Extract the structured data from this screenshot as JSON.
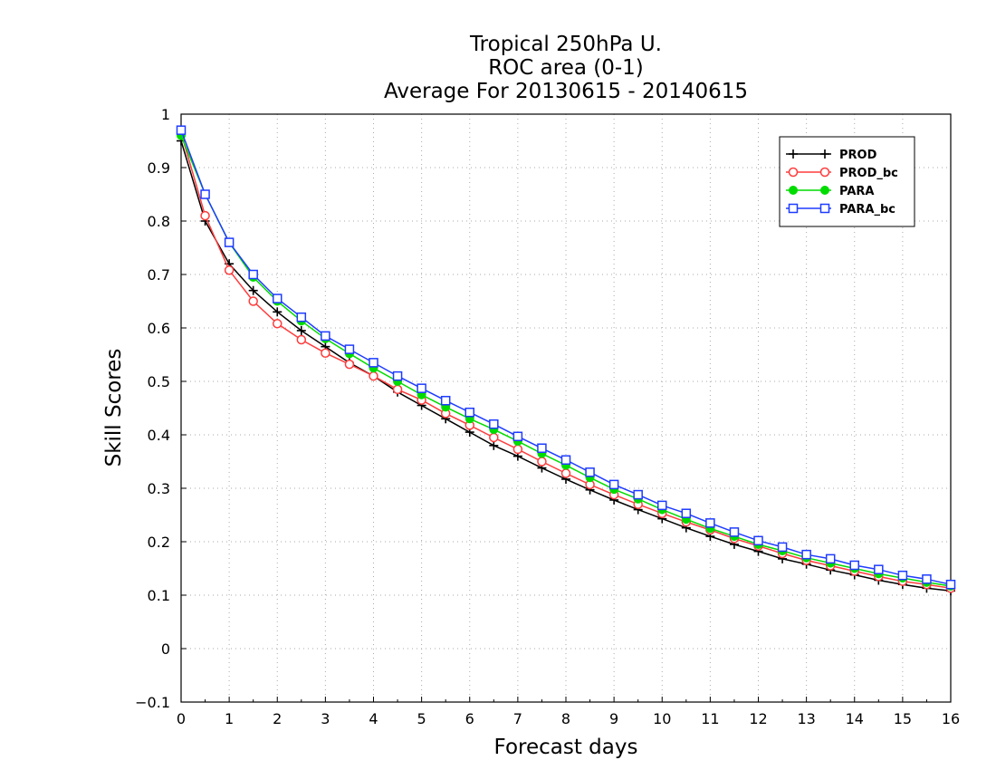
{
  "chart_data": {
    "type": "line",
    "title": [
      "Tropical 250hPa U.",
      "ROC area (0-1)",
      "Average For 20130615 - 20140615"
    ],
    "xlabel": "Forecast days",
    "ylabel": "Skill Scores",
    "xlim": [
      0,
      16
    ],
    "ylim": [
      -0.1,
      1
    ],
    "xticks": [
      "0",
      "1",
      "2",
      "3",
      "4",
      "5",
      "6",
      "7",
      "8",
      "9",
      "10",
      "11",
      "12",
      "13",
      "14",
      "15",
      "16"
    ],
    "yticks": [
      "−0.1",
      "0",
      "0.1",
      "0.2",
      "0.3",
      "0.4",
      "0.5",
      "0.6",
      "0.7",
      "0.8",
      "0.9",
      "1"
    ],
    "grid": true,
    "legend_position": "top-right",
    "x": [
      0,
      0.5,
      1,
      1.5,
      2,
      2.5,
      3,
      3.5,
      4,
      4.5,
      5,
      5.5,
      6,
      6.5,
      7,
      7.5,
      8,
      8.5,
      9,
      9.5,
      10,
      10.5,
      11,
      11.5,
      12,
      12.5,
      13,
      13.5,
      14,
      14.5,
      15,
      15.5,
      16
    ],
    "series": [
      {
        "name": "PROD",
        "color": "#000000",
        "marker": "plus",
        "values": [
          0.95,
          0.8,
          0.72,
          0.67,
          0.63,
          0.595,
          0.565,
          0.535,
          0.51,
          0.48,
          0.455,
          0.43,
          0.405,
          0.38,
          0.36,
          0.338,
          0.317,
          0.297,
          0.278,
          0.26,
          0.243,
          0.226,
          0.21,
          0.195,
          0.182,
          0.168,
          0.158,
          0.147,
          0.138,
          0.128,
          0.12,
          0.113,
          0.108
        ]
      },
      {
        "name": "PROD_bc",
        "color": "#ff3c3c",
        "marker": "circle",
        "values": [
          0.965,
          0.81,
          0.708,
          0.65,
          0.608,
          0.578,
          0.553,
          0.532,
          0.51,
          0.485,
          0.465,
          0.44,
          0.418,
          0.395,
          0.373,
          0.35,
          0.328,
          0.307,
          0.288,
          0.27,
          0.253,
          0.237,
          0.222,
          0.206,
          0.192,
          0.178,
          0.165,
          0.155,
          0.145,
          0.135,
          0.126,
          0.12,
          0.113
        ]
      },
      {
        "name": "PARA",
        "color": "#00dc00",
        "marker": "filled-circle",
        "values": [
          0.96,
          0.85,
          0.76,
          0.695,
          0.65,
          0.613,
          0.58,
          0.552,
          0.525,
          0.5,
          0.475,
          0.452,
          0.43,
          0.41,
          0.388,
          0.365,
          0.343,
          0.32,
          0.298,
          0.28,
          0.26,
          0.242,
          0.225,
          0.21,
          0.195,
          0.183,
          0.17,
          0.16,
          0.15,
          0.14,
          0.132,
          0.124,
          0.117
        ]
      },
      {
        "name": "PARA_bc",
        "color": "#1e3cff",
        "marker": "square",
        "values": [
          0.97,
          0.85,
          0.76,
          0.7,
          0.655,
          0.62,
          0.585,
          0.56,
          0.535,
          0.51,
          0.487,
          0.464,
          0.442,
          0.42,
          0.397,
          0.375,
          0.353,
          0.33,
          0.307,
          0.288,
          0.268,
          0.253,
          0.235,
          0.218,
          0.202,
          0.19,
          0.176,
          0.168,
          0.156,
          0.148,
          0.137,
          0.13,
          0.12
        ]
      }
    ]
  }
}
